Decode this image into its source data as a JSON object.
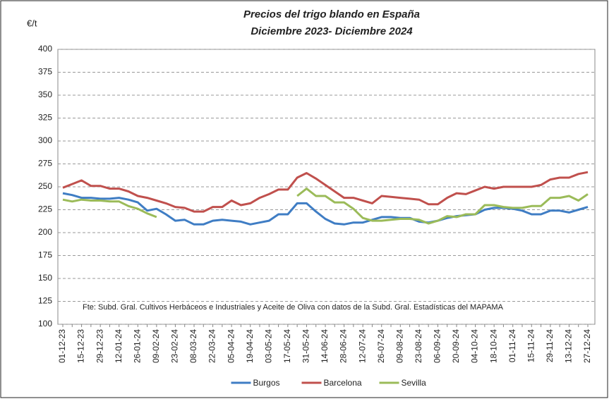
{
  "chart_data": {
    "type": "line",
    "title": "Precios del trigo blando en España",
    "subtitle": "Diciembre 2023- Diciembre 2024",
    "y_label": "€/t",
    "annotation": "Fte: Subd. Gral. Cultivos Herbáceos e Industriales y Aceite de Oliva  con datos de la Subd. Gral. Estadísticas del MAPAMA",
    "categories": [
      "01-12-23",
      null,
      "15-12-23",
      null,
      "29-12-23",
      null,
      "12-01-24",
      null,
      "26-01-24",
      null,
      "09-02-24",
      null,
      "23-02-24",
      null,
      "08-03-24",
      null,
      "22-03-24",
      null,
      "05-04-24",
      null,
      "19-04-24",
      null,
      "03-05-24",
      null,
      "17-05-24",
      null,
      "31-05-24",
      null,
      "14-06-24",
      null,
      "28-06-24",
      null,
      "12-07-24",
      null,
      "26-07-24",
      null,
      "09-08-24",
      null,
      "23-08-24",
      null,
      "06-09-24",
      null,
      "20-09-24",
      null,
      "04-10-24",
      null,
      "18-10-24",
      null,
      "01-11-24",
      null,
      "15-11-24",
      null,
      "29-11-24",
      null,
      "13-12-24",
      null,
      "27-12-24"
    ],
    "series": [
      {
        "name": "Burgos",
        "color": "#3f7dc4",
        "values": [
          243,
          241,
          238,
          238,
          237,
          237,
          238,
          236,
          233,
          224,
          226,
          220,
          213,
          214,
          209,
          209,
          213,
          214,
          213,
          212,
          209,
          211,
          213,
          220,
          220,
          232,
          232,
          223,
          215,
          210,
          209,
          211,
          211,
          214,
          217,
          217,
          216,
          216,
          212,
          211,
          213,
          216,
          218,
          219,
          220,
          225,
          227,
          227,
          226,
          224,
          220,
          220,
          224,
          224,
          222,
          225,
          228
        ]
      },
      {
        "name": "Barcelona",
        "color": "#c0504d",
        "values": [
          249,
          253,
          257,
          251,
          251,
          248,
          248,
          245,
          240,
          238,
          235,
          232,
          228,
          227,
          223,
          223,
          228,
          228,
          235,
          230,
          232,
          238,
          242,
          247,
          247,
          260,
          265,
          259,
          252,
          245,
          238,
          238,
          235,
          232,
          240,
          239,
          238,
          237,
          236,
          231,
          231,
          238,
          243,
          242,
          246,
          250,
          248,
          250,
          250,
          250,
          250,
          252,
          258,
          260,
          260,
          264,
          266
        ]
      },
      {
        "name": "Sevilla",
        "color": "#9bbb59",
        "values": [
          236,
          234,
          236,
          235,
          235,
          234,
          234,
          229,
          226,
          221,
          217,
          null,
          null,
          null,
          null,
          null,
          null,
          null,
          null,
          null,
          null,
          null,
          null,
          null,
          null,
          240,
          248,
          240,
          240,
          233,
          233,
          226,
          216,
          213,
          213,
          214,
          215,
          215,
          214,
          210,
          213,
          218,
          217,
          220,
          220,
          230,
          230,
          228,
          227,
          227,
          229,
          229,
          238,
          238,
          240,
          235,
          242
        ]
      }
    ],
    "ylim": [
      100,
      400
    ],
    "yticks": [
      100,
      125,
      150,
      175,
      200,
      225,
      250,
      275,
      300,
      325,
      350,
      375,
      400
    ],
    "grid": true,
    "legend": "bottom"
  }
}
